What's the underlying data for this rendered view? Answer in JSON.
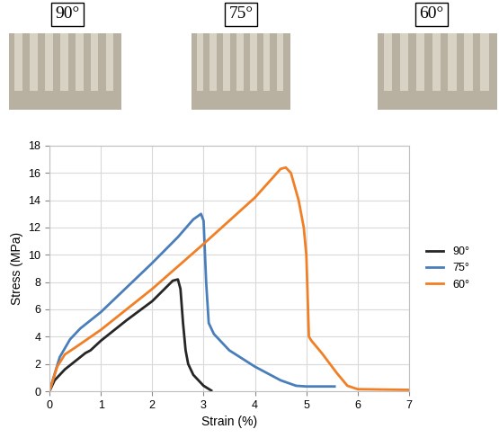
{
  "chart_data": {
    "type": "line",
    "x_label": "Strain (%)",
    "y_label": "Stress (MPa)",
    "annotations": [
      "90°",
      "75°",
      "60°"
    ],
    "xlim": [
      0,
      7
    ],
    "xticks": [
      0,
      1,
      2,
      3,
      4,
      5,
      6,
      7
    ],
    "ylim": [
      0,
      18
    ],
    "yticks": [
      0,
      2,
      4,
      6,
      8,
      10,
      12,
      14,
      16,
      18
    ],
    "grid": true,
    "legend": "right",
    "series": [
      {
        "name": "90°",
        "color": "#262626",
        "x": [
          0,
          0.1,
          0.3,
          0.7,
          0.8,
          1.0,
          1.5,
          2.0,
          2.4,
          2.5,
          2.55,
          2.6,
          2.65,
          2.7,
          2.8,
          3.0,
          3.15
        ],
        "values": [
          0,
          0.8,
          1.6,
          2.8,
          3.0,
          3.7,
          5.2,
          6.6,
          8.1,
          8.2,
          7.5,
          5.0,
          3.0,
          2.0,
          1.2,
          0.4,
          0.05
        ]
      },
      {
        "name": "75°",
        "color": "#4a7ebb",
        "x": [
          0,
          0.2,
          0.4,
          0.6,
          1.0,
          1.5,
          2.0,
          2.5,
          2.8,
          2.95,
          3.0,
          3.05,
          3.1,
          3.2,
          3.5,
          4.0,
          4.5,
          4.8,
          5.0,
          5.55
        ],
        "values": [
          0,
          2.5,
          3.8,
          4.6,
          5.8,
          7.6,
          9.4,
          11.3,
          12.6,
          13.0,
          12.5,
          8.0,
          5.0,
          4.2,
          3.0,
          1.8,
          0.8,
          0.4,
          0.35,
          0.35
        ]
      },
      {
        "name": "60°",
        "color": "#f07f26",
        "x": [
          0,
          0.15,
          0.3,
          0.5,
          1.0,
          2.0,
          3.0,
          4.0,
          4.5,
          4.6,
          4.7,
          4.85,
          4.95,
          5.0,
          5.05,
          5.1,
          5.3,
          5.6,
          5.8,
          6.0,
          7.0
        ],
        "values": [
          0,
          1.8,
          2.7,
          3.2,
          4.5,
          7.5,
          10.8,
          14.2,
          16.3,
          16.4,
          16.0,
          14.0,
          12.0,
          10.0,
          4.0,
          3.7,
          2.8,
          1.3,
          0.4,
          0.15,
          0.1
        ]
      }
    ]
  }
}
